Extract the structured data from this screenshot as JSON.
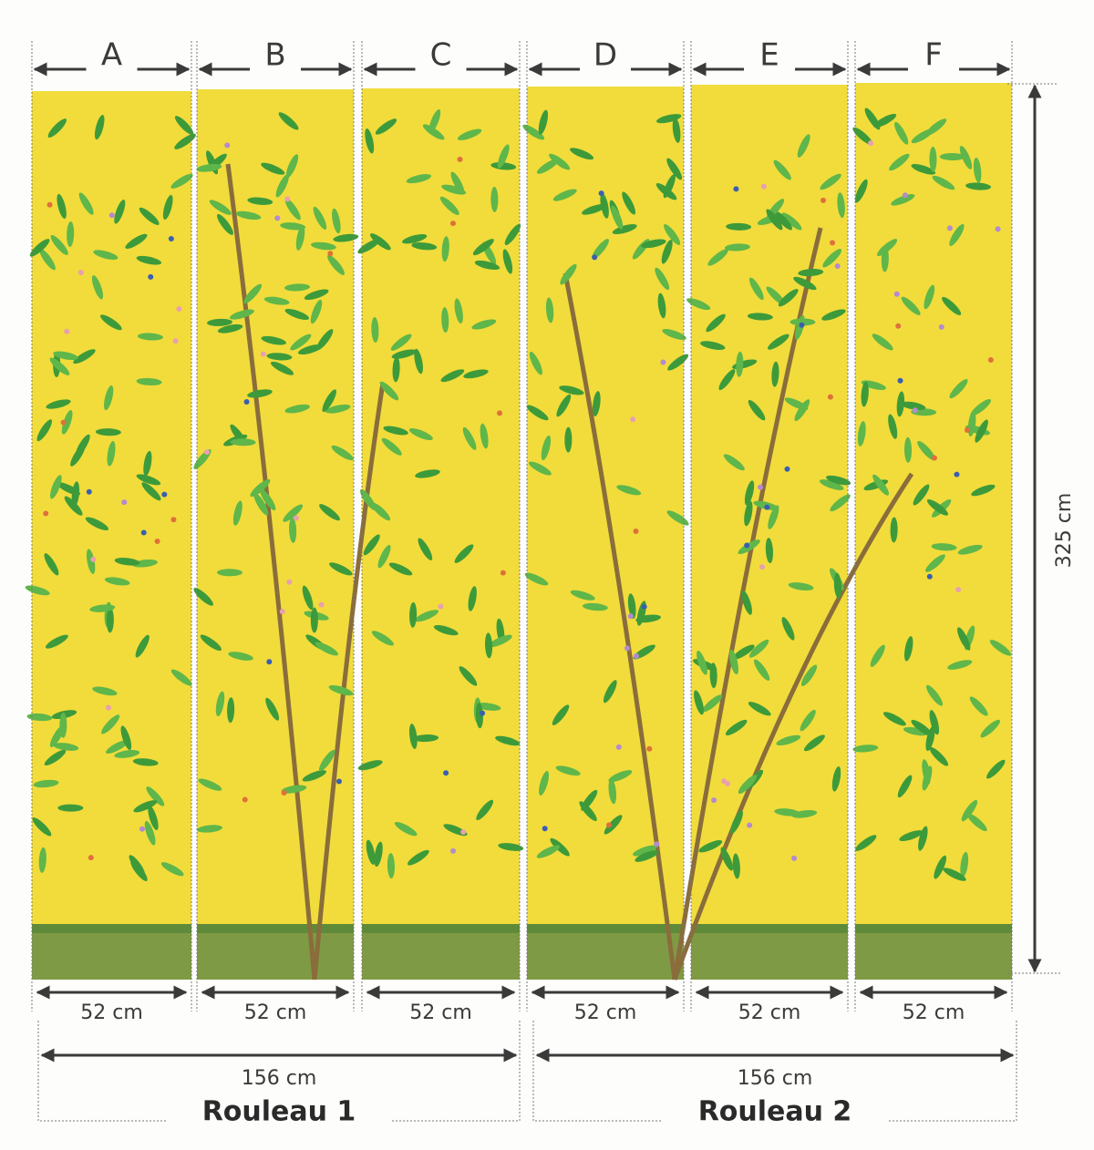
{
  "panels": [
    {
      "label": "A",
      "width": "52 cm"
    },
    {
      "label": "B",
      "width": "52 cm"
    },
    {
      "label": "C",
      "width": "52 cm"
    },
    {
      "label": "D",
      "width": "52 cm"
    },
    {
      "label": "E",
      "width": "52 cm"
    },
    {
      "label": "F",
      "width": "52 cm"
    }
  ],
  "rolls": [
    {
      "width": "156 cm",
      "name": "Rouleau 1"
    },
    {
      "width": "156 cm",
      "name": "Rouleau 2"
    }
  ],
  "height": "325 cm"
}
